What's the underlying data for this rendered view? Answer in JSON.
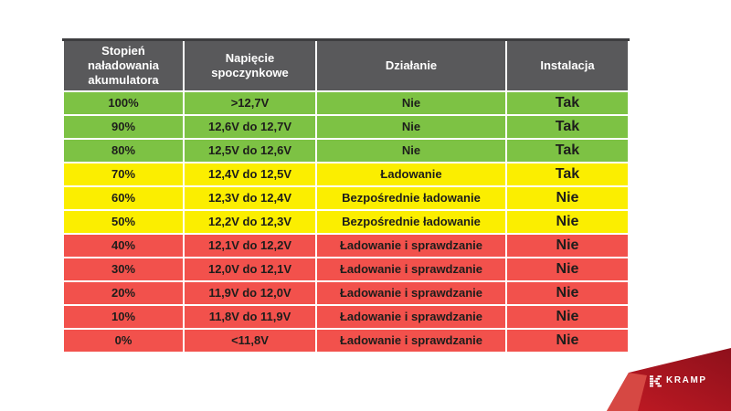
{
  "chart_data": {
    "type": "table",
    "columns": [
      "Stopień naładowania akumulatora",
      "Napięcie spoczynkowe",
      "Działanie",
      "Instalacja"
    ],
    "rows": [
      {
        "charge": "100%",
        "voltage": ">12,7V",
        "action": "Nie",
        "installation": "Tak",
        "band": "green"
      },
      {
        "charge": "90%",
        "voltage": "12,6V do 12,7V",
        "action": "Nie",
        "installation": "Tak",
        "band": "green"
      },
      {
        "charge": "80%",
        "voltage": "12,5V do 12,6V",
        "action": "Nie",
        "installation": "Tak",
        "band": "green"
      },
      {
        "charge": "70%",
        "voltage": "12,4V do 12,5V",
        "action": "Ładowanie",
        "installation": "Tak",
        "band": "yellow"
      },
      {
        "charge": "60%",
        "voltage": "12,3V do 12,4V",
        "action": "Bezpośrednie ładowanie",
        "installation": "Nie",
        "band": "yellow"
      },
      {
        "charge": "50%",
        "voltage": "12,2V do 12,3V",
        "action": "Bezpośrednie ładowanie",
        "installation": "Nie",
        "band": "yellow"
      },
      {
        "charge": "40%",
        "voltage": "12,1V do 12,2V",
        "action": "Ładowanie i sprawdzanie",
        "installation": "Nie",
        "band": "red"
      },
      {
        "charge": "30%",
        "voltage": "12,0V do 12,1V",
        "action": "Ładowanie i sprawdzanie",
        "installation": "Nie",
        "band": "red"
      },
      {
        "charge": "20%",
        "voltage": "11,9V do 12,0V",
        "action": "Ładowanie i sprawdzanie",
        "installation": "Nie",
        "band": "red"
      },
      {
        "charge": "10%",
        "voltage": "11,8V do 11,9V",
        "action": "Ładowanie i sprawdzanie",
        "installation": "Nie",
        "band": "red"
      },
      {
        "charge": "0%",
        "voltage": "<11,8V",
        "action": "Ładowanie i sprawdzanie",
        "installation": "Nie",
        "band": "red"
      }
    ]
  },
  "logo": {
    "brand": "KRAMP"
  },
  "colors": {
    "page_bg": "#ffffff",
    "header_bg": "#59595b",
    "header_top_edge": "#3e3e40",
    "header_text": "#ffffff",
    "cell_text": "#1d1d1b",
    "grid_line": "#ffffff",
    "green_row": "#7dc244",
    "yellow_row": "#fbee00",
    "red_row": "#f2514c",
    "ribbon_dark": "#8e101b",
    "ribbon_mid": "#c21a24",
    "ribbon_fold": "#d64843",
    "logo_white": "#ffffff"
  }
}
